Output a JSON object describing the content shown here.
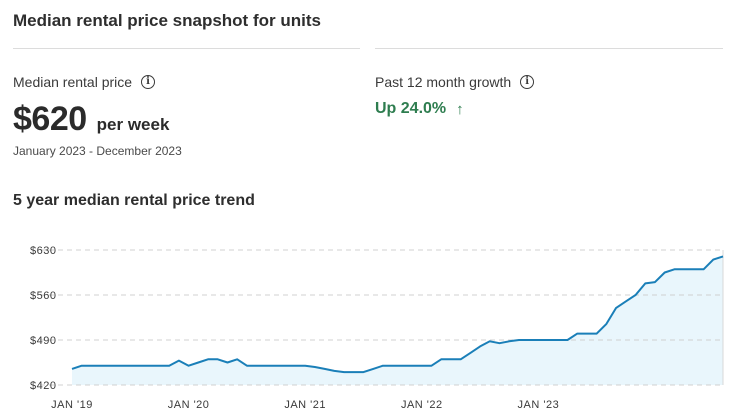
{
  "header": {
    "title": "Median rental price snapshot for units"
  },
  "median": {
    "label": "Median rental price",
    "value": "$620",
    "unit": "per week",
    "period": "January 2023 - December 2023"
  },
  "growth": {
    "label": "Past 12 month growth",
    "value": "Up 24.0%",
    "arrow": "↑",
    "color": "#2e7d4f"
  },
  "trend": {
    "title": "5 year median rental price trend"
  },
  "chart_data": {
    "type": "area",
    "title": "5 year median rental price trend",
    "xlabel": "",
    "ylabel": "",
    "ylim": [
      420,
      630
    ],
    "yticks": [
      630,
      560,
      490,
      420
    ],
    "ytick_labels": [
      "$630",
      "$560",
      "$490",
      "$420"
    ],
    "xticks": [
      0,
      12,
      24,
      36,
      48
    ],
    "xtick_labels": [
      "JAN '19",
      "JAN '20",
      "JAN '21",
      "JAN '22",
      "JAN '23"
    ],
    "grid": true,
    "line_color": "#1a7fb8",
    "fill_color": "#e9f6fc",
    "series": [
      {
        "values": [
          445,
          450,
          450,
          450,
          450,
          450,
          450,
          450,
          450,
          450,
          450,
          458,
          450,
          455,
          460,
          460,
          455,
          460,
          450,
          450,
          450,
          450,
          450,
          450,
          450,
          448,
          445,
          442,
          440,
          440,
          440,
          445,
          450,
          450,
          450,
          450,
          450,
          450,
          460,
          460,
          460,
          470,
          480,
          488,
          485,
          488,
          490,
          490,
          490,
          490,
          490,
          490,
          500,
          500,
          500,
          515,
          540,
          550,
          560,
          578,
          580,
          595,
          600,
          600,
          600,
          600,
          615,
          620
        ]
      }
    ]
  }
}
